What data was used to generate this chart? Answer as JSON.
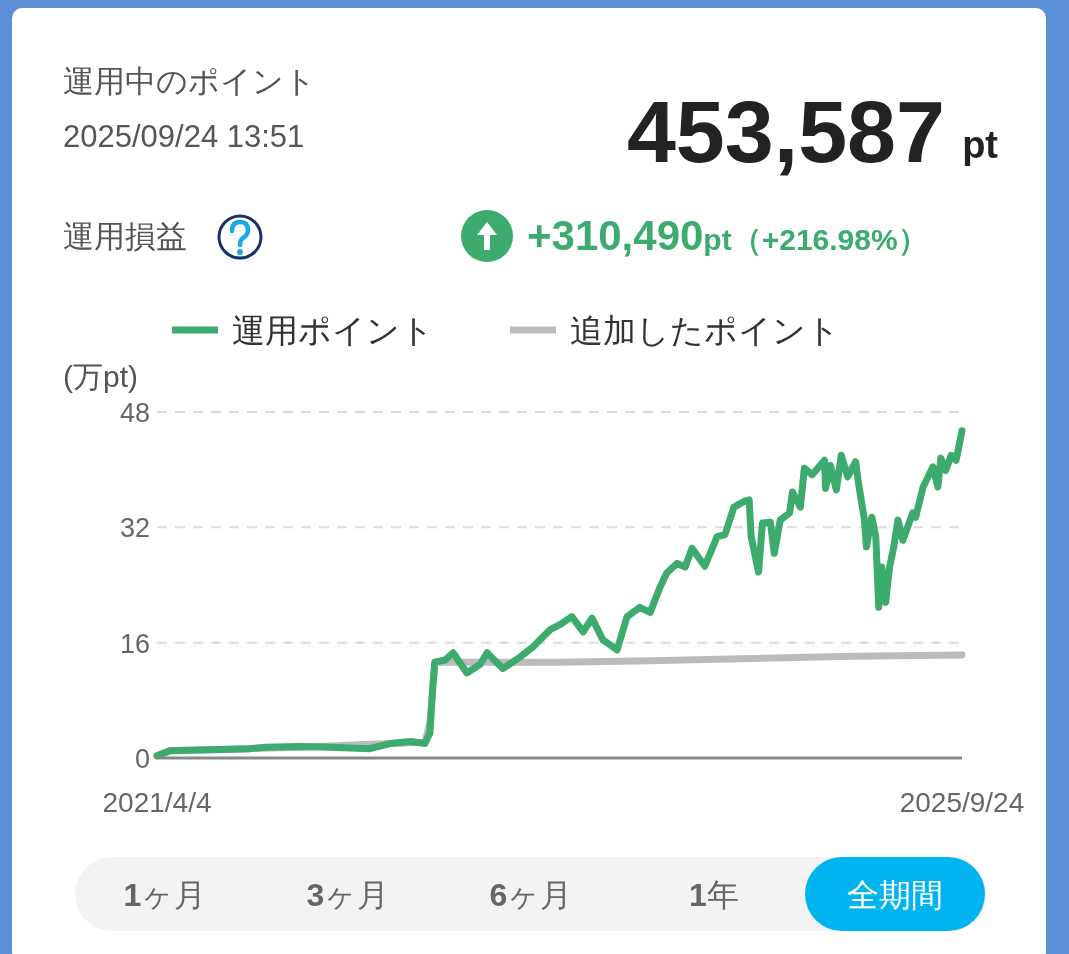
{
  "chart_data": {
    "type": "line",
    "title": "運用中のポイント",
    "subtitle": "2025/09/24 13:51",
    "ylabel": "(万pt)",
    "annotations": [
      "453,587",
      "pt",
      "運用損益",
      "+310,490",
      "pt",
      "（+216.98%）",
      "1ヶ月",
      "3ヶ月",
      "6ヶ月",
      "1年",
      "全期間"
    ],
    "series": [
      {
        "name": "運用ポイント",
        "color": "#3daa6e",
        "x": [
          "2021-04-04",
          "2021-04-30",
          "2021-06-30",
          "2021-10-10",
          "2021-11-09",
          "2022-01-19",
          "2022-03-21",
          "2022-06-10",
          "2022-07-21",
          "2022-08-31",
          "2022-09-30",
          "2022-10-10",
          "2022-10-16",
          "2022-10-20",
          "2022-11-10",
          "2022-11-26",
          "2022-12-24",
          "2023-01-20",
          "2023-02-03",
          "2023-03-07",
          "2023-04-11",
          "2023-05-07",
          "2023-06-11",
          "2023-07-01",
          "2023-07-25",
          "2023-08-17",
          "2023-09-04",
          "2023-09-26",
          "2023-10-25",
          "2023-11-14",
          "2023-12-10",
          "2023-12-31",
          "2024-01-20",
          "2024-02-03",
          "2024-02-24",
          "2024-03-11",
          "2024-03-25",
          "2024-04-20",
          "2024-05-15",
          "2024-05-31",
          "2024-06-18",
          "2024-07-09",
          "2024-07-19",
          "2024-07-23",
          "2024-08-07",
          "2024-08-15",
          "2024-08-31",
          "2024-09-08",
          "2024-09-20",
          "2024-10-09",
          "2024-10-15",
          "2024-10-31",
          "2024-11-08",
          "2024-11-24",
          "2024-12-19",
          "2024-12-21",
          "2024-12-31",
          "2025-01-12",
          "2025-01-22",
          "2025-02-04",
          "2025-02-20",
          "2025-02-26",
          "2025-03-10",
          "2025-03-14",
          "2025-03-25",
          "2025-04-02",
          "2025-04-08",
          "2025-04-14",
          "2025-04-22",
          "2025-04-30",
          "2025-05-08",
          "2025-05-17",
          "2025-05-27",
          "2025-06-16",
          "2025-06-22",
          "2025-07-07",
          "2025-07-27",
          "2025-08-06",
          "2025-08-12",
          "2025-08-22",
          "2025-09-02",
          "2025-09-12",
          "2025-09-24"
        ],
        "values": [
          0.3,
          1.0,
          1.1,
          1.3,
          1.5,
          1.6,
          1.5,
          1.3,
          2.0,
          2.3,
          2.0,
          3.5,
          10,
          13.3,
          13.6,
          14.6,
          11.8,
          13.0,
          14.6,
          12.4,
          14.0,
          15.4,
          17.8,
          18.5,
          19.6,
          17.5,
          19.4,
          16.4,
          15.0,
          19.6,
          20.9,
          20.2,
          23.7,
          25.7,
          27.0,
          26.5,
          29.1,
          26.6,
          30.7,
          31.0,
          34.8,
          35.6,
          35.8,
          30.7,
          25.8,
          32.6,
          32.7,
          28.4,
          33.0,
          34.0,
          36.9,
          34.8,
          40.2,
          39.3,
          41.3,
          37.4,
          40.6,
          37.2,
          42.0,
          39.0,
          41.1,
          38.1,
          33.0,
          29.3,
          33.4,
          30.7,
          20.9,
          26.5,
          21.6,
          26.5,
          29.1,
          33.0,
          30.2,
          34.0,
          33.4,
          37.6,
          40.4,
          37.6,
          41.6,
          39.9,
          42.0,
          41.3,
          45.4
        ]
      },
      {
        "name": "追加したポイント",
        "color": "#bbbbbb",
        "x": [
          "2021-04-04",
          "2021-04-30",
          "2022-01-19",
          "2022-07-21",
          "2022-09-30",
          "2022-10-10",
          "2022-10-20",
          "2023-07-01",
          "2023-12-31",
          "2025-02-15",
          "2025-09-24"
        ],
        "values": [
          0.3,
          1.0,
          1.5,
          2.0,
          2.2,
          5.0,
          13.3,
          13.3,
          13.5,
          14.1,
          14.3
        ]
      }
    ],
    "xlim": [
      "2021-04-04",
      "2025-09-24"
    ],
    "xticks": [
      {
        "value": "2021-04-04",
        "label": "2021/4/4"
      },
      {
        "value": "2025-09-24",
        "label": "2025/9/24"
      }
    ],
    "ylim": [
      0,
      48
    ],
    "yticks": [
      0,
      16,
      32,
      48
    ],
    "grid": "y",
    "legend": "top",
    "marker": "none",
    "line_style": "solid"
  }
}
